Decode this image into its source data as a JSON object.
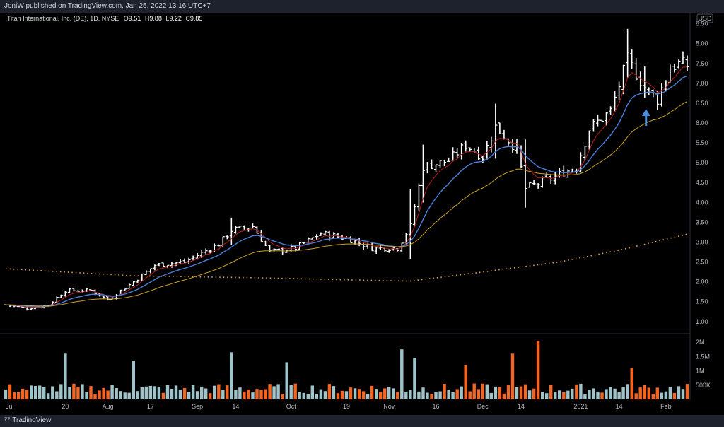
{
  "publish_line": "JoniW published on TradingView.com, Jan 25, 2022 13:16 UTC+7",
  "brand": "TradingView",
  "chart_data": {
    "type": "ohlc",
    "symbol_label": "Titan International, Inc. (DE), 1D, NYSE",
    "legend": {
      "o_key": "O",
      "o": "9.51",
      "h_key": "H",
      "h": "9.88",
      "l_key": "L",
      "l": "9.22",
      "c_key": "C",
      "c": "9.85"
    },
    "currency": "USD",
    "y_ticks": [
      "8.00",
      "7.50",
      "7.00",
      "6.50",
      "6.00",
      "5.50",
      "5.00",
      "4.50",
      "4.00",
      "3.50",
      "3.00",
      "2.50",
      "2.00",
      "1.50",
      "1.00"
    ],
    "y_top_partial": "8.50",
    "ylim": [
      0.8,
      8.6
    ],
    "volume_ticks": [
      "2M",
      "1.5M",
      "1M",
      "500K"
    ],
    "volume_max": 2200000,
    "x_ticks": [
      {
        "label": "Jul",
        "bar": 0
      },
      {
        "label": "20",
        "bar": 14
      },
      {
        "label": "Aug",
        "bar": 24
      },
      {
        "label": "17",
        "bar": 34
      },
      {
        "label": "Sep",
        "bar": 45
      },
      {
        "label": "14",
        "bar": 54
      },
      {
        "label": "Oct",
        "bar": 67
      },
      {
        "label": "19",
        "bar": 80
      },
      {
        "label": "Nov",
        "bar": 90
      },
      {
        "label": "16",
        "bar": 101
      },
      {
        "label": "Dec",
        "bar": 112
      },
      {
        "label": "14",
        "bar": 121
      },
      {
        "label": "2021",
        "bar": 135
      },
      {
        "label": "14",
        "bar": 144
      },
      {
        "label": "Feb",
        "bar": 155
      }
    ],
    "bar_count": 161,
    "anchors": [
      {
        "i": 0,
        "p": 1.42
      },
      {
        "i": 5,
        "p": 1.33
      },
      {
        "i": 10,
        "p": 1.42
      },
      {
        "i": 14,
        "p": 1.78
      },
      {
        "i": 20,
        "p": 1.78
      },
      {
        "i": 24,
        "p": 1.55
      },
      {
        "i": 30,
        "p": 2.0
      },
      {
        "i": 35,
        "p": 2.42
      },
      {
        "i": 42,
        "p": 2.5
      },
      {
        "i": 50,
        "p": 2.95
      },
      {
        "i": 53,
        "p": 3.3
      },
      {
        "i": 58,
        "p": 3.4
      },
      {
        "i": 62,
        "p": 2.75
      },
      {
        "i": 68,
        "p": 2.85
      },
      {
        "i": 74,
        "p": 3.22
      },
      {
        "i": 80,
        "p": 3.1
      },
      {
        "i": 86,
        "p": 2.85
      },
      {
        "i": 92,
        "p": 2.85
      },
      {
        "i": 95,
        "p": 3.4
      },
      {
        "i": 98,
        "p": 4.9
      },
      {
        "i": 104,
        "p": 5.05
      },
      {
        "i": 108,
        "p": 5.45
      },
      {
        "i": 112,
        "p": 5.15
      },
      {
        "i": 115,
        "p": 5.9
      },
      {
        "i": 120,
        "p": 5.35
      },
      {
        "i": 122,
        "p": 4.35
      },
      {
        "i": 128,
        "p": 4.6
      },
      {
        "i": 134,
        "p": 4.9
      },
      {
        "i": 137,
        "p": 5.85
      },
      {
        "i": 142,
        "p": 6.3
      },
      {
        "i": 146,
        "p": 7.6
      },
      {
        "i": 150,
        "p": 6.9
      },
      {
        "i": 153,
        "p": 6.6
      },
      {
        "i": 156,
        "p": 7.4
      },
      {
        "i": 158,
        "p": 7.5
      },
      {
        "i": 160,
        "p": 7.45
      }
    ],
    "spike_bars": [
      {
        "i": 53,
        "amp": 0.5
      },
      {
        "i": 95,
        "amp": 1.4
      },
      {
        "i": 98,
        "amp": 1.0
      },
      {
        "i": 115,
        "amp": 0.9
      },
      {
        "i": 122,
        "amp": 1.0
      },
      {
        "i": 146,
        "amp": 0.9
      },
      {
        "i": 150,
        "amp": 0.6
      }
    ],
    "ema_fast_color": "#b71c1c",
    "ema_mid_color": "#4a7fd9",
    "sma_slow_color": "#c9a227",
    "sma_200_color": "#e0a33c",
    "sma_200": [
      {
        "i": 0,
        "p": 2.33
      },
      {
        "i": 30,
        "p": 2.15
      },
      {
        "i": 60,
        "p": 2.1
      },
      {
        "i": 80,
        "p": 2.05
      },
      {
        "i": 95,
        "p": 2.02
      },
      {
        "i": 110,
        "p": 2.22
      },
      {
        "i": 130,
        "p": 2.5
      },
      {
        "i": 145,
        "p": 2.82
      },
      {
        "i": 160,
        "p": 3.2
      }
    ],
    "volume_up_color": "#9ec3c9",
    "volume_down_color": "#f26522",
    "volume_spikes": [
      {
        "i": 14,
        "v": 1600000
      },
      {
        "i": 30,
        "v": 1350000
      },
      {
        "i": 53,
        "v": 1650000
      },
      {
        "i": 66,
        "v": 1300000
      },
      {
        "i": 93,
        "v": 1750000
      },
      {
        "i": 96,
        "v": 1450000
      },
      {
        "i": 108,
        "v": 1200000
      },
      {
        "i": 119,
        "v": 1600000
      },
      {
        "i": 125,
        "v": 2050000
      },
      {
        "i": 147,
        "v": 1100000
      }
    ],
    "arrow": {
      "i": 150,
      "color": "#4a90e2"
    }
  }
}
